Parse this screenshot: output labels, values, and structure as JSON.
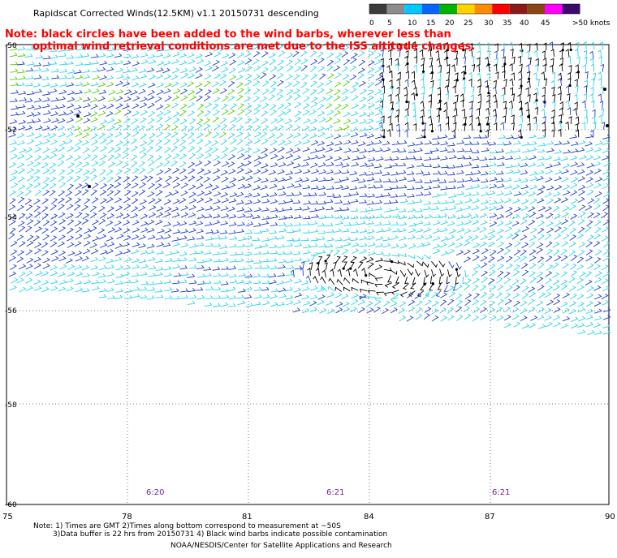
{
  "title": "Rapidscat Corrected Winds(12.5KM) v1.1 20150731 descending",
  "note": {
    "line1": "Note: black circles have been added to the wind barbs, wherever less than",
    "line2": "optimal wind retrieval conditions are met due to the ISS altitude changes."
  },
  "legend": {
    "labels": [
      "0",
      "5",
      "10",
      "15",
      "20",
      "25",
      "30",
      "35",
      "40",
      "45",
      ">50 knots"
    ],
    "colors": [
      "#3c3c3c",
      "#8c8c8c",
      "#00c8ff",
      "#0a64ff",
      "#00b400",
      "#ffd200",
      "#ff8c00",
      "#ff0000",
      "#8b1a1a",
      "#8b4513",
      "#ff00ff",
      "#3b0a6b"
    ]
  },
  "map": {
    "lat_labels": [
      "-50",
      "-52",
      "-54",
      "-56",
      "-58",
      "-60"
    ],
    "lon_labels": [
      "75",
      "78",
      "81",
      "84",
      "87",
      "90"
    ],
    "times": [
      "6:20",
      "6:21",
      "6:21"
    ]
  },
  "footer": {
    "line1": "Note: 1) Times are GMT 2)Times along bottom correspond to measurement at ~50S",
    "line2": "3)Data buffer is 22 hrs from 20150731 4) Black wind barbs indicate possible contamination",
    "line3": "NOAA/NESDIS/Center for Satellite Applications and Research"
  },
  "colors": {
    "cyan": "#2ad4e8",
    "blue": "#1e3cd2",
    "green": "#4fd000",
    "black": "#000000",
    "note": "#ff0000",
    "time": "#7a1fa2"
  }
}
